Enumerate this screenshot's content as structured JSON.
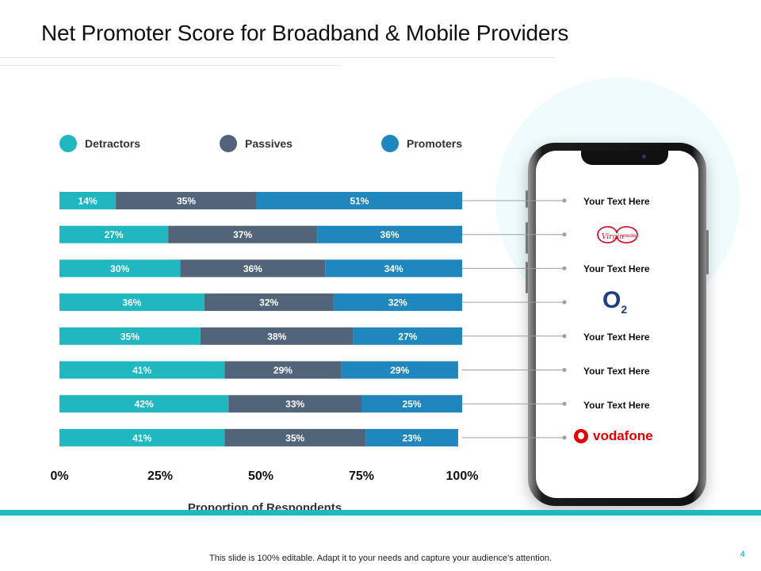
{
  "slide": {
    "title": "Net Promoter Score for Broadband & Mobile Providers",
    "footer": "This slide is 100% editable. Adapt it to your needs and capture your audience's attention.",
    "page_number": "4"
  },
  "colors": {
    "detractors": "#1fb8c1",
    "passives": "#52647a",
    "promoters": "#2086be",
    "accent": "#1fb8c1"
  },
  "providers": [
    {
      "label": "Your Text Here",
      "logo": ""
    },
    {
      "label": "",
      "logo": "virgin-media-logo"
    },
    {
      "label": "Your Text Here",
      "logo": ""
    },
    {
      "label": "",
      "logo": "o2-logo"
    },
    {
      "label": "Your Text Here",
      "logo": ""
    },
    {
      "label": "Your Text Here",
      "logo": ""
    },
    {
      "label": "Your Text Here",
      "logo": ""
    },
    {
      "label": "",
      "logo": "vodafone-logo"
    }
  ],
  "logos": {
    "o2_main": "O",
    "o2_sub": "2",
    "vodafone": "vodafone",
    "virgin": "Virgin",
    "media": "media"
  },
  "chart_data": {
    "type": "bar",
    "orientation": "horizontal",
    "stacked": true,
    "xlabel": "Proportion of Respondents",
    "ylabel": "",
    "xlim": [
      0,
      100
    ],
    "x_ticks": [
      "0%",
      "25%",
      "50%",
      "75%",
      "100%"
    ],
    "legend_position": "top",
    "grid": false,
    "series": [
      {
        "name": "Detractors",
        "values": [
          14,
          27,
          30,
          36,
          35,
          41,
          42,
          41
        ]
      },
      {
        "name": "Passives",
        "values": [
          35,
          37,
          36,
          32,
          38,
          29,
          33,
          35
        ]
      },
      {
        "name": "Promoters",
        "values": [
          51,
          36,
          34,
          32,
          27,
          29,
          25,
          23
        ]
      }
    ]
  }
}
